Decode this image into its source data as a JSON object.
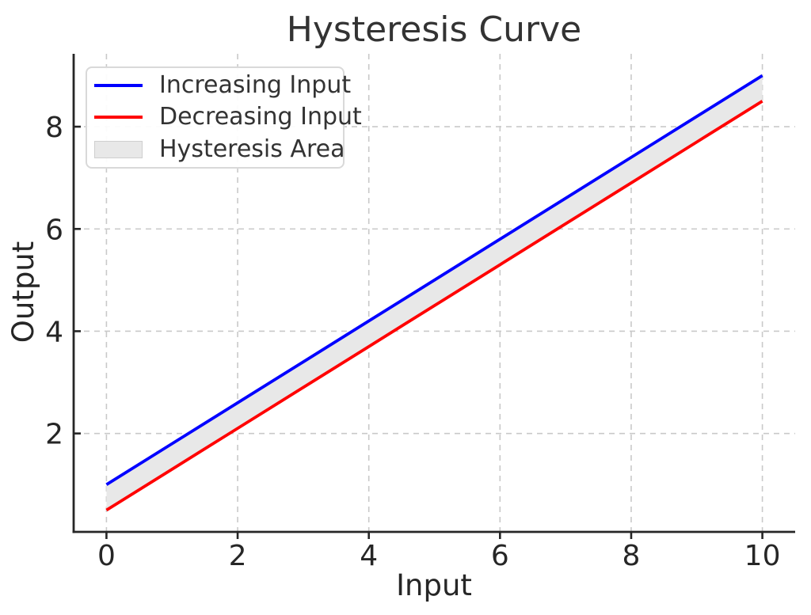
{
  "chart_data": {
    "type": "line",
    "title": "Hysteresis Curve",
    "xlabel": "Input",
    "ylabel": "Output",
    "x": [
      0,
      1,
      2,
      3,
      4,
      5,
      6,
      7,
      8,
      9,
      10
    ],
    "series": [
      {
        "name": "Increasing Input",
        "color": "#0000ff",
        "values": [
          1.0,
          1.8,
          2.6,
          3.4,
          4.2,
          5.0,
          5.8,
          6.6,
          7.4,
          8.2,
          9.0
        ]
      },
      {
        "name": "Decreasing Input",
        "color": "#ff0000",
        "values": [
          0.5,
          1.3,
          2.1,
          2.9,
          3.7,
          4.5,
          5.3,
          6.1,
          6.9,
          7.7,
          8.5
        ]
      }
    ],
    "area": {
      "name": "Hysteresis Area",
      "fill": "#e8e8e8",
      "edge": "#cfcfcf",
      "between": [
        "Increasing Input",
        "Decreasing Input"
      ]
    },
    "xlim": [
      -0.5,
      10.5
    ],
    "ylim": [
      0.075,
      9.425
    ],
    "xticks": [
      0,
      2,
      4,
      6,
      8,
      10
    ],
    "yticks": [
      2,
      4,
      6,
      8
    ],
    "xtick_labels": [
      "0",
      "2",
      "4",
      "6",
      "8",
      "10"
    ],
    "ytick_labels": [
      "2",
      "4",
      "6",
      "8"
    ],
    "grid": true,
    "legend_position": "upper left"
  },
  "theme": {
    "grid_color": "#c9c9c9",
    "spine_color": "#262626",
    "text_color": "#262626",
    "title_color": "#333333"
  }
}
